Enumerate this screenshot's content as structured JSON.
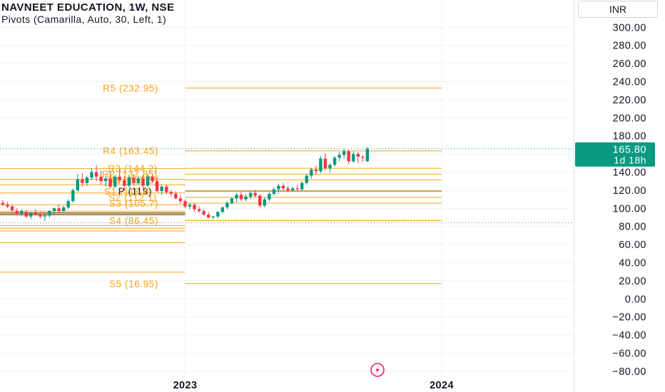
{
  "header": {
    "title": "NAVNEET EDUCATION, 1W, NSE",
    "subtitle": "Pivots (Camarilla, Auto, 30, Left, 1)"
  },
  "currency": "INR",
  "price_badge": {
    "price": "165.80",
    "countdown": "1d 18h",
    "color": "#089981"
  },
  "colors": {
    "up": "#089981",
    "down": "#f23645",
    "pivot": "#f7a21b",
    "pivot_dark": "#7a5212",
    "grid": "#f0f3fa",
    "text": "#131722"
  },
  "chart_data": {
    "type": "candlestick",
    "y_axis": {
      "ticks": [
        300,
        280,
        260,
        240,
        220,
        200,
        180,
        160,
        140,
        120,
        100,
        80,
        60,
        40,
        20,
        0,
        -20,
        -40,
        -60,
        -80
      ],
      "tick_labels": [
        "300.00",
        "280.00",
        "260.00",
        "240.00",
        "220.00",
        "200.00",
        "180.00",
        "160.00",
        "140.00",
        "120.00",
        "100.00",
        "80.00",
        "60.00",
        "40.00",
        "20.00",
        "0.00",
        "−20.00",
        "−40.00",
        "−60.00",
        "−80.00"
      ],
      "ylim": [
        -86,
        318
      ]
    },
    "x_axis": {
      "ticks": [
        {
          "label": "2023",
          "week_index": 43
        },
        {
          "label": "2024",
          "week_index": 95
        }
      ]
    },
    "current_price": 165.8,
    "reference_line": 84,
    "pivot_levels_current": [
      {
        "label": "R5 (232.95)",
        "value": 232.95
      },
      {
        "label": "R4 (163.45)",
        "value": 163.45
      },
      {
        "label": "R3 (144.2)",
        "value": 144.2
      },
      {
        "label": "R2 (137.85)",
        "value": 137.85
      },
      {
        "label": "R1 (131.5)",
        "value": 131.5
      },
      {
        "label": "P (119)",
        "value": 119
      },
      {
        "label": "S1 (118.6)",
        "value": 118.6
      },
      {
        "label": "S2 (112.1)",
        "value": 112.1
      },
      {
        "label": "S3 (105.7)",
        "value": 105.7
      },
      {
        "label": "S4 (86.45)",
        "value": 86.45
      },
      {
        "label": "S5 (16.95)",
        "value": 16.95
      }
    ],
    "pivot_levels_previous": [
      144.0,
      132.0,
      126.0,
      117.0,
      104.0,
      97.0,
      95.0,
      93.0,
      81.0,
      78.0,
      75.0,
      62.0,
      29.5
    ],
    "candles": [
      {
        "o": 106,
        "h": 109,
        "l": 103,
        "c": 104
      },
      {
        "o": 104,
        "h": 107,
        "l": 100,
        "c": 102
      },
      {
        "o": 102,
        "h": 104,
        "l": 96,
        "c": 98
      },
      {
        "o": 97,
        "h": 100,
        "l": 92,
        "c": 94
      },
      {
        "o": 94,
        "h": 99,
        "l": 91,
        "c": 97
      },
      {
        "o": 96,
        "h": 98,
        "l": 89,
        "c": 91
      },
      {
        "o": 91,
        "h": 96,
        "l": 88,
        "c": 95
      },
      {
        "o": 95,
        "h": 99,
        "l": 92,
        "c": 93
      },
      {
        "o": 93,
        "h": 96,
        "l": 89,
        "c": 91
      },
      {
        "o": 91,
        "h": 94,
        "l": 86,
        "c": 92
      },
      {
        "o": 92,
        "h": 98,
        "l": 90,
        "c": 97
      },
      {
        "o": 97,
        "h": 101,
        "l": 93,
        "c": 100
      },
      {
        "o": 100,
        "h": 104,
        "l": 95,
        "c": 97
      },
      {
        "o": 97,
        "h": 103,
        "l": 96,
        "c": 101
      },
      {
        "o": 101,
        "h": 110,
        "l": 99,
        "c": 108
      },
      {
        "o": 108,
        "h": 122,
        "l": 106,
        "c": 120
      },
      {
        "o": 120,
        "h": 138,
        "l": 118,
        "c": 132
      },
      {
        "o": 132,
        "h": 139,
        "l": 124,
        "c": 128
      },
      {
        "o": 128,
        "h": 136,
        "l": 125,
        "c": 134
      },
      {
        "o": 134,
        "h": 144,
        "l": 131,
        "c": 140
      },
      {
        "o": 140,
        "h": 148,
        "l": 130,
        "c": 135
      },
      {
        "o": 135,
        "h": 142,
        "l": 126,
        "c": 130
      },
      {
        "o": 130,
        "h": 136,
        "l": 124,
        "c": 133
      },
      {
        "o": 133,
        "h": 141,
        "l": 122,
        "c": 124
      },
      {
        "o": 124,
        "h": 137,
        "l": 122,
        "c": 135
      },
      {
        "o": 135,
        "h": 143,
        "l": 128,
        "c": 131
      },
      {
        "o": 131,
        "h": 135,
        "l": 120,
        "c": 125
      },
      {
        "o": 125,
        "h": 137,
        "l": 123,
        "c": 134
      },
      {
        "o": 134,
        "h": 138,
        "l": 125,
        "c": 128
      },
      {
        "o": 128,
        "h": 136,
        "l": 126,
        "c": 133
      },
      {
        "o": 133,
        "h": 137,
        "l": 122,
        "c": 125
      },
      {
        "o": 125,
        "h": 138,
        "l": 124,
        "c": 135
      },
      {
        "o": 135,
        "h": 137,
        "l": 128,
        "c": 130
      },
      {
        "o": 130,
        "h": 135,
        "l": 118,
        "c": 119
      },
      {
        "o": 119,
        "h": 126,
        "l": 115,
        "c": 124
      },
      {
        "o": 124,
        "h": 126,
        "l": 116,
        "c": 118
      },
      {
        "o": 118,
        "h": 120,
        "l": 113,
        "c": 116
      },
      {
        "o": 116,
        "h": 119,
        "l": 110,
        "c": 111
      },
      {
        "o": 111,
        "h": 115,
        "l": 105,
        "c": 108
      },
      {
        "o": 108,
        "h": 110,
        "l": 100,
        "c": 102
      },
      {
        "o": 102,
        "h": 106,
        "l": 99,
        "c": 104
      },
      {
        "o": 104,
        "h": 106,
        "l": 96,
        "c": 99
      },
      {
        "o": 99,
        "h": 102,
        "l": 95,
        "c": 97
      },
      {
        "o": 97,
        "h": 99,
        "l": 92,
        "c": 93
      },
      {
        "o": 93,
        "h": 96,
        "l": 89,
        "c": 90
      },
      {
        "o": 90,
        "h": 92,
        "l": 88,
        "c": 91
      },
      {
        "o": 91,
        "h": 97,
        "l": 89,
        "c": 96
      },
      {
        "o": 96,
        "h": 102,
        "l": 94,
        "c": 101
      },
      {
        "o": 101,
        "h": 108,
        "l": 99,
        "c": 106
      },
      {
        "o": 106,
        "h": 112,
        "l": 104,
        "c": 111
      },
      {
        "o": 111,
        "h": 117,
        "l": 107,
        "c": 115
      },
      {
        "o": 115,
        "h": 118,
        "l": 108,
        "c": 110
      },
      {
        "o": 110,
        "h": 116,
        "l": 108,
        "c": 113
      },
      {
        "o": 113,
        "h": 118,
        "l": 110,
        "c": 117
      },
      {
        "o": 117,
        "h": 120,
        "l": 112,
        "c": 114
      },
      {
        "o": 114,
        "h": 116,
        "l": 101,
        "c": 103
      },
      {
        "o": 103,
        "h": 112,
        "l": 101,
        "c": 110
      },
      {
        "o": 110,
        "h": 118,
        "l": 108,
        "c": 116
      },
      {
        "o": 116,
        "h": 123,
        "l": 114,
        "c": 121
      },
      {
        "o": 121,
        "h": 127,
        "l": 117,
        "c": 125
      },
      {
        "o": 125,
        "h": 128,
        "l": 120,
        "c": 122
      },
      {
        "o": 122,
        "h": 125,
        "l": 118,
        "c": 120
      },
      {
        "o": 120,
        "h": 124,
        "l": 118,
        "c": 122
      },
      {
        "o": 122,
        "h": 126,
        "l": 119,
        "c": 121
      },
      {
        "o": 121,
        "h": 130,
        "l": 119,
        "c": 128
      },
      {
        "o": 128,
        "h": 138,
        "l": 126,
        "c": 136
      },
      {
        "o": 136,
        "h": 145,
        "l": 133,
        "c": 143
      },
      {
        "o": 143,
        "h": 147,
        "l": 137,
        "c": 141
      },
      {
        "o": 141,
        "h": 158,
        "l": 139,
        "c": 155
      },
      {
        "o": 155,
        "h": 161,
        "l": 142,
        "c": 144
      },
      {
        "o": 144,
        "h": 150,
        "l": 140,
        "c": 148
      },
      {
        "o": 148,
        "h": 158,
        "l": 146,
        "c": 156
      },
      {
        "o": 156,
        "h": 162,
        "l": 152,
        "c": 159
      },
      {
        "o": 159,
        "h": 166,
        "l": 155,
        "c": 163
      },
      {
        "o": 163,
        "h": 165,
        "l": 149,
        "c": 152
      },
      {
        "o": 152,
        "h": 163,
        "l": 150,
        "c": 160
      },
      {
        "o": 160,
        "h": 162,
        "l": 150,
        "c": 157
      },
      {
        "o": 157,
        "h": 159,
        "l": 151,
        "c": 156
      },
      {
        "o": 152,
        "h": 168,
        "l": 151,
        "c": 165.8
      }
    ]
  }
}
